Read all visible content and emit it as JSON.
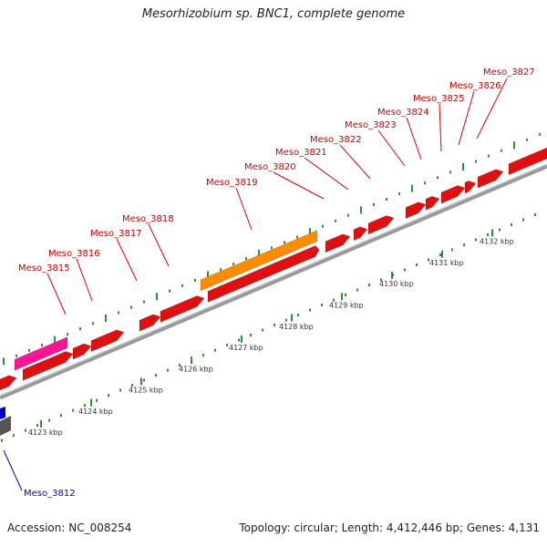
{
  "title": "Mesorhizobium sp. BNC1, complete genome",
  "footer": {
    "accession": "Accession: NC_008254",
    "topology": "Topology: circular; Length: 4,412,446 bp; Genes: 4,131"
  },
  "colors": {
    "gene": "#e01010",
    "gene_label": "#cc0000",
    "highlight_gene": "#ff8c00",
    "pink_gene": "#ff1493",
    "blue_label": "#0000cc",
    "tick": "#2f8f2f",
    "backbone": "#999999"
  },
  "scale_labels": [
    "4123 kbp",
    "4124 kbp",
    "4125 kbp",
    "4126 kbp",
    "4127 kbp",
    "4128 kbp",
    "4129 kbp",
    "4130 kbp",
    "4131 kbp",
    "4132 kbp"
  ],
  "gene_labels": [
    "Meso_3815",
    "Meso_3816",
    "Meso_3817",
    "Meso_3818",
    "Meso_3819",
    "Meso_3820",
    "Meso_3821",
    "Meso_3822",
    "Meso_3823",
    "Meso_3824",
    "Meso_3825",
    "Meso_3826",
    "Meso_3827"
  ],
  "blue_label": "Meso_3812"
}
